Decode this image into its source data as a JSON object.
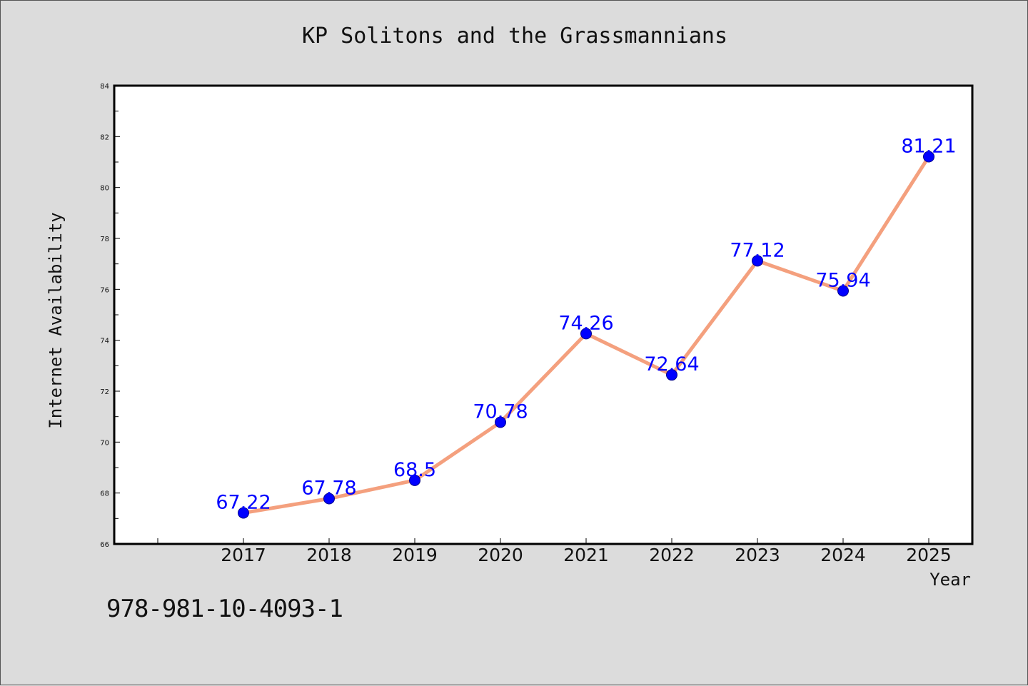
{
  "title": "KP Solitons and the Grassmannians",
  "footer": "978-981-10-4093-1",
  "colors": {
    "background": "#dcdcdc",
    "plot_background": "#ffffff",
    "line": "#f4a07e",
    "marker": "#0000ff",
    "data_label": "#0000ff",
    "text": "#111111"
  },
  "chart_data": {
    "type": "line",
    "title": "KP Solitons and the Grassmannians",
    "xlabel": "Year",
    "ylabel": "Internet Availability",
    "categories": [
      "2017",
      "2018",
      "2019",
      "2020",
      "2021",
      "2022",
      "2023",
      "2024",
      "2025"
    ],
    "series": [
      {
        "values": [
          67.22,
          67.78,
          68.5,
          70.78,
          74.26,
          72.64,
          77.12,
          75.94,
          81.21
        ],
        "labels": [
          "67.22",
          "67.78",
          "68.5",
          "70.78",
          "74.26",
          "72.64",
          "77.12",
          "75.94",
          "81.21"
        ]
      }
    ],
    "ylim": [
      66,
      84
    ],
    "yticks": [
      "66",
      "68",
      "70",
      "72",
      "74",
      "76",
      "78",
      "80",
      "82",
      "84"
    ],
    "grid": false,
    "legend": "none"
  }
}
